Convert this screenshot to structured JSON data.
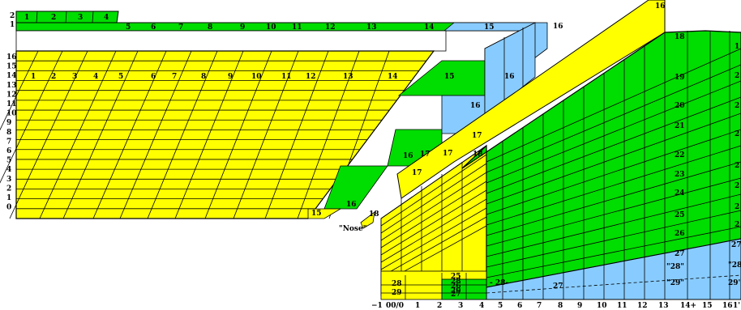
{
  "left_row_labels": [
    "16",
    "15",
    "14",
    "13",
    "12",
    "11",
    "10",
    "9",
    "8",
    "7",
    "6",
    "5",
    "4",
    "3",
    "2",
    "1",
    "0"
  ],
  "top_row_labels": [
    "2",
    "1"
  ],
  "top_strip_a": [
    "1",
    "2",
    "3",
    "4"
  ],
  "top_strip_b": [
    "5",
    "6",
    "7",
    "8",
    "9",
    "10",
    "11",
    "12",
    "13",
    "14",
    "15",
    "16"
  ],
  "row14_labels": [
    "1",
    "2",
    "3",
    "4",
    "5",
    "6",
    "7",
    "8",
    "9",
    "10",
    "11",
    "12",
    "13",
    "14",
    "15",
    "16"
  ],
  "mid_labels": [
    "16",
    "16",
    "17",
    "16",
    "17",
    "18",
    "17",
    "15",
    "16",
    "18",
    "17"
  ],
  "nose_label": "\"Nose\"",
  "right_green_labels": [
    "18",
    "19",
    "20",
    "21",
    "22",
    "23",
    "24",
    "25",
    "26",
    "27",
    "\"28\"",
    "\"29\""
  ],
  "right_edge_labels": [
    "1",
    "2",
    "2",
    "2",
    "2",
    "2",
    "2",
    "2",
    "27",
    "\"28'",
    "29'"
  ],
  "bottom_block_labels": [
    "25",
    "26",
    "27",
    "28",
    "29",
    "28",
    "29",
    "27",
    "- 28-"
  ],
  "x_axis_labels": [
    "−1",
    "00/0",
    "1",
    "2",
    "3",
    "4",
    "5",
    "6",
    "7",
    "8",
    "9",
    "10",
    "11",
    "12",
    "13",
    "14+",
    "15",
    "16",
    "1'"
  ],
  "colors": {
    "yellow": "#ffff00",
    "green": "#00dd00",
    "blue": "#88ccff",
    "white": "#ffffff"
  }
}
